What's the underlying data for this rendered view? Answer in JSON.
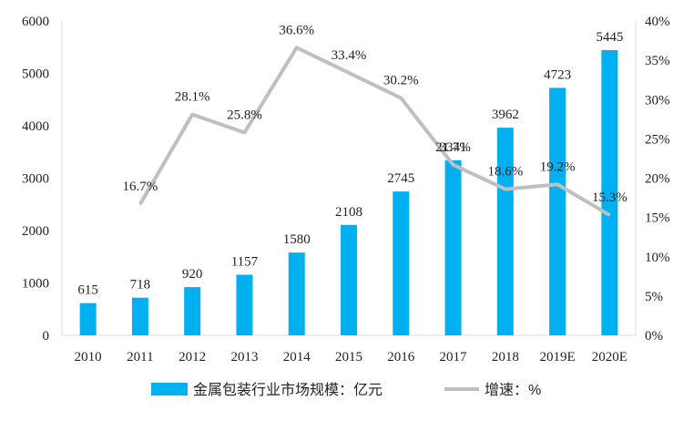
{
  "chart_data": {
    "type": "bar+line",
    "categories": [
      "2010",
      "2011",
      "2012",
      "2013",
      "2014",
      "2015",
      "2016",
      "2017",
      "2018",
      "2019E",
      "2020E"
    ],
    "bar_series": {
      "name": "金属包装行业市场规模：亿元",
      "values": [
        615,
        718,
        920,
        1157,
        1580,
        2108,
        2745,
        3341,
        3962,
        4723,
        5445
      ],
      "labels": [
        "615",
        "718",
        "920",
        "1157",
        "1580",
        "2108",
        "2745",
        "3341",
        "3962",
        "4723",
        "5445"
      ],
      "color": "#00B0F0"
    },
    "line_series": {
      "name": "增速：%",
      "values": [
        null,
        16.7,
        28.1,
        25.8,
        36.6,
        33.4,
        30.2,
        21.7,
        18.6,
        19.2,
        15.3
      ],
      "labels": [
        "",
        "16.7%",
        "28.1%",
        "25.8%",
        "36.6%",
        "33.4%",
        "30.2%",
        "21.7%",
        "18.6%",
        "19.2%",
        "15.3%"
      ],
      "color": "#BFBFBF"
    },
    "y_left": {
      "min": 0,
      "max": 6000,
      "ticks": [
        "0",
        "1000",
        "2000",
        "3000",
        "4000",
        "5000",
        "6000"
      ]
    },
    "y_right": {
      "min": 0,
      "max": 40,
      "ticks": [
        "0%",
        "5%",
        "10%",
        "15%",
        "20%",
        "25%",
        "30%",
        "35%",
        "40%"
      ]
    },
    "grid": false,
    "legend_position": "bottom"
  }
}
